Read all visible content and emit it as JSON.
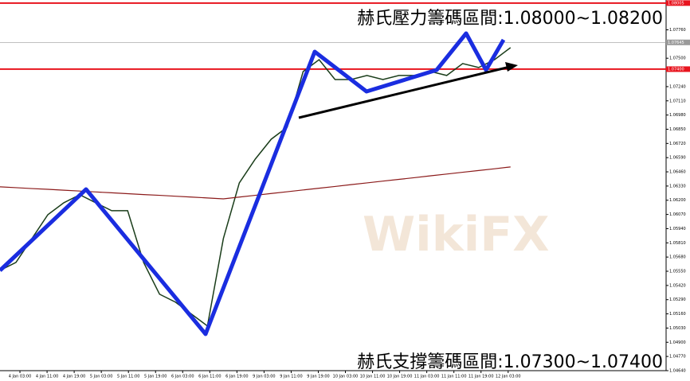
{
  "chart_data": {
    "type": "line",
    "annotations": [
      "赫氏壓力籌碼區間:1.08000~1.08200",
      "赫氏支撐籌碼區間:1.07300~1.07400"
    ],
    "watermark": "WikiFX",
    "x": [
      0,
      1,
      2,
      3,
      4,
      5,
      6,
      7,
      8,
      9,
      10,
      11,
      12,
      13,
      14,
      15,
      16,
      17,
      18,
      19,
      20,
      21,
      22,
      23,
      24,
      25,
      26,
      27,
      28,
      29,
      30,
      31,
      32
    ],
    "xlim": [
      0,
      41.75
    ],
    "xticks": [
      {
        "value": 1.25,
        "label": "4 Jan 03:00"
      },
      {
        "value": 2.95,
        "label": "4 Jan 11:00"
      },
      {
        "value": 4.65,
        "label": "4 Jan 19:00"
      },
      {
        "value": 6.35,
        "label": "5 Jan 03:00"
      },
      {
        "value": 8.05,
        "label": "5 Jan 11:00"
      },
      {
        "value": 9.75,
        "label": "5 Jan 19:00"
      },
      {
        "value": 11.45,
        "label": "6 Jan 03:00"
      },
      {
        "value": 13.15,
        "label": "6 Jan 11:00"
      },
      {
        "value": 14.85,
        "label": "6 Jan 19:00"
      },
      {
        "value": 16.55,
        "label": "9 Jan 03:00"
      },
      {
        "value": 18.25,
        "label": "9 Jan 11:00"
      },
      {
        "value": 19.95,
        "label": "9 Jan 19:00"
      },
      {
        "value": 21.65,
        "label": "10 Jan 03:00"
      },
      {
        "value": 23.35,
        "label": "10 Jan 11:00"
      },
      {
        "value": 25.05,
        "label": "10 Jan 19:00"
      },
      {
        "value": 26.75,
        "label": "11 Jan 03:00"
      },
      {
        "value": 28.45,
        "label": "11 Jan 11:00"
      },
      {
        "value": 30.15,
        "label": "11 Jan 19:00"
      },
      {
        "value": 31.85,
        "label": "12 Jan 03:00"
      }
    ],
    "series": [
      {
        "color": "#1a3d1a",
        "values": [
          1.05558,
          1.05631,
          1.05849,
          1.06068,
          1.06177,
          1.0625,
          1.06177,
          1.06104,
          1.06104,
          1.05631,
          1.0534,
          1.05267,
          1.05158,
          1.05049,
          1.05849,
          1.06359,
          1.06577,
          1.06759,
          1.06869,
          1.07378,
          1.07487,
          1.07305,
          1.07305,
          1.07342,
          1.07305,
          1.07342,
          1.07342,
          1.07378,
          1.07342,
          1.07451,
          1.07415,
          1.07487,
          1.07597
        ]
      },
      {
        "color": "#8b1a1a",
        "values": [
          1.06323,
          1.06315,
          1.06307,
          1.063,
          1.06292,
          1.06284,
          1.06276,
          1.06268,
          1.0626,
          1.06252,
          1.06245,
          1.06237,
          1.06229,
          1.06221,
          1.06213,
          1.06229,
          1.06245,
          1.06262,
          1.06278,
          1.06294,
          1.0631,
          1.06326,
          1.06343,
          1.06359,
          1.06375,
          1.06391,
          1.06407,
          1.06424,
          1.0644,
          1.06456,
          1.06472,
          1.06488,
          1.06505
        ]
      }
    ],
    "ylim": [
      1.0464,
      1.08033
    ],
    "yticks": [
      {
        "value": 1.0464,
        "label": "1.04640"
      },
      {
        "value": 1.0477,
        "label": "1.04770"
      },
      {
        "value": 1.049,
        "label": "1.04900"
      },
      {
        "value": 1.0503,
        "label": "1.05030"
      },
      {
        "value": 1.0516,
        "label": "1.05160"
      },
      {
        "value": 1.0529,
        "label": "1.05290"
      },
      {
        "value": 1.0542,
        "label": "1.05420"
      },
      {
        "value": 1.0555,
        "label": "1.05550"
      },
      {
        "value": 1.0568,
        "label": "1.05680"
      },
      {
        "value": 1.0581,
        "label": "1.05810"
      },
      {
        "value": 1.0594,
        "label": "1.05940"
      },
      {
        "value": 1.0607,
        "label": "1.06070"
      },
      {
        "value": 1.062,
        "label": "1.06200"
      },
      {
        "value": 1.0633,
        "label": "1.06330"
      },
      {
        "value": 1.0646,
        "label": "1.06460"
      },
      {
        "value": 1.0659,
        "label": "1.06590"
      },
      {
        "value": 1.0672,
        "label": "1.06720"
      },
      {
        "value": 1.0685,
        "label": "1.06850"
      },
      {
        "value": 1.0698,
        "label": "1.06980"
      },
      {
        "value": 1.0711,
        "label": "1.07110"
      },
      {
        "value": 1.0724,
        "label": "1.07240"
      },
      {
        "value": 1.075,
        "label": "1.07500"
      },
      {
        "value": 1.0776,
        "label": "1.07760"
      }
    ],
    "hlines": [
      {
        "value": 1.08005,
        "label": "1.08005",
        "color": "#e8141e"
      },
      {
        "value": 1.074,
        "label": "1.07400",
        "color": "#e8141e"
      },
      {
        "value": 1.07645,
        "label": "1.07645",
        "color": "#9a9a9a"
      }
    ]
  }
}
